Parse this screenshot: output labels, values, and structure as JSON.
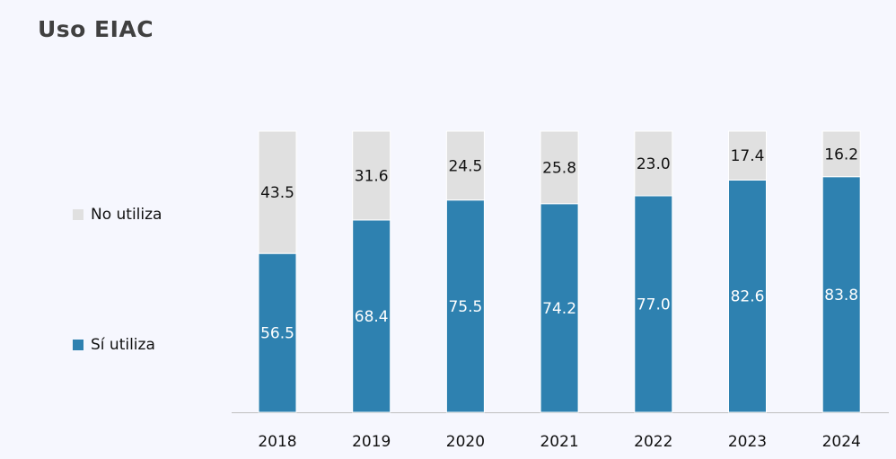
{
  "chart_data": {
    "type": "bar",
    "stacked": true,
    "title": "Uso EIAC",
    "xlabel": "",
    "ylabel": "",
    "ylim": [
      0,
      100
    ],
    "grid": false,
    "legend_position": "left",
    "categories": [
      "2018",
      "2019",
      "2020",
      "2021",
      "2022",
      "2023",
      "2024"
    ],
    "series": [
      {
        "name": "Sí utiliza",
        "color": "#2e81b0",
        "label_color": "#ffffff",
        "values": [
          56.5,
          68.4,
          75.5,
          74.2,
          77.0,
          82.6,
          83.8
        ]
      },
      {
        "name": "No utiliza",
        "color": "#e0e0e0",
        "label_color": "#111111",
        "values": [
          43.5,
          31.6,
          24.5,
          25.8,
          23.0,
          17.4,
          16.2
        ]
      }
    ]
  }
}
